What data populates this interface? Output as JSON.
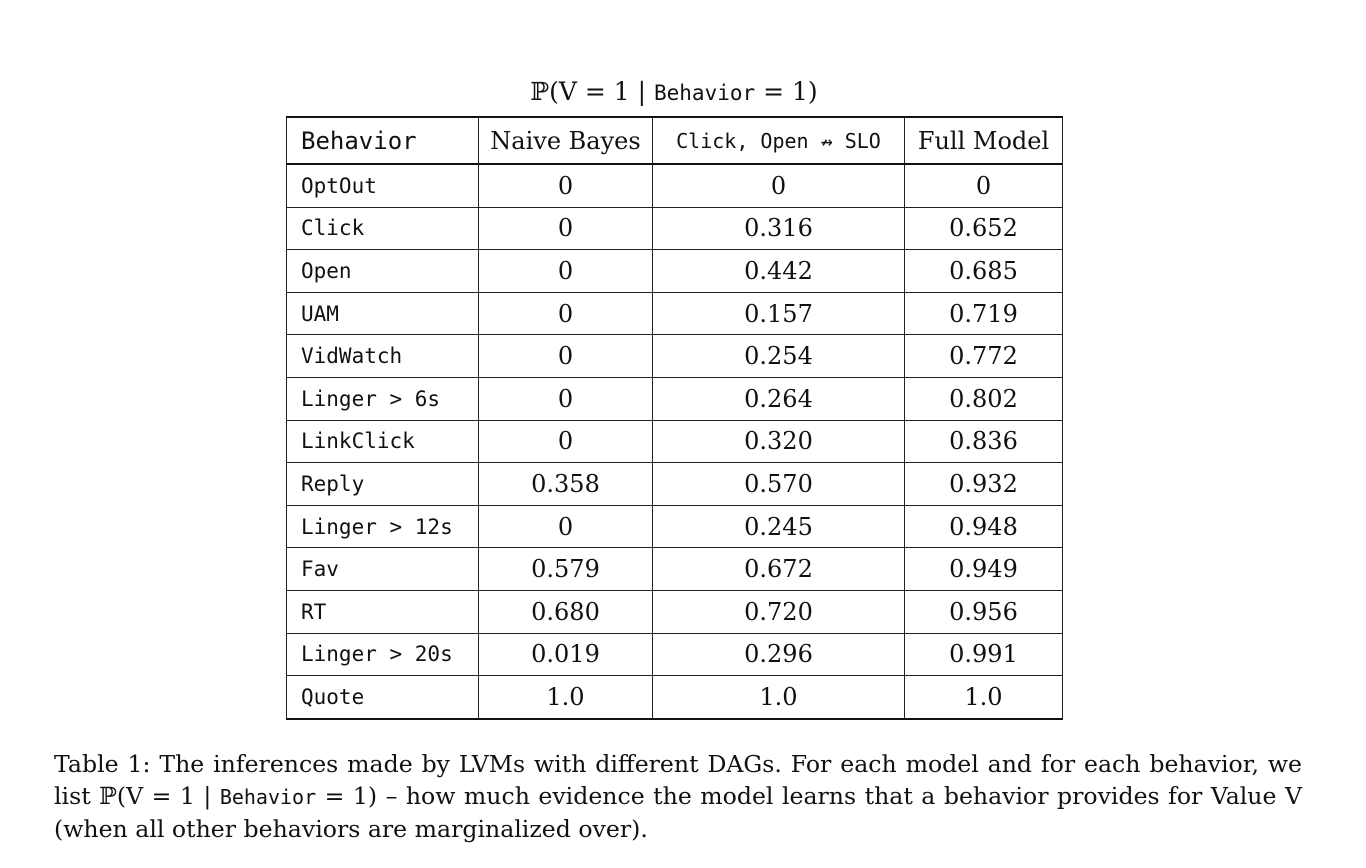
{
  "table_title": {
    "prefix": "ℙ(V = 1 | ",
    "code": "Behavior",
    "suffix": " = 1)"
  },
  "table": {
    "headers": [
      "Behavior",
      "Naive Bayes",
      "Click, Open ↛ SLO",
      "Full Model"
    ],
    "rows": [
      {
        "behavior": "OptOut",
        "naive_bayes": "0",
        "click_open_slo": "0",
        "full_model": "0"
      },
      {
        "behavior": "Click",
        "naive_bayes": "0",
        "click_open_slo": "0.316",
        "full_model": "0.652"
      },
      {
        "behavior": "Open",
        "naive_bayes": "0",
        "click_open_slo": "0.442",
        "full_model": "0.685"
      },
      {
        "behavior": "UAM",
        "naive_bayes": "0",
        "click_open_slo": "0.157",
        "full_model": "0.719"
      },
      {
        "behavior": "VidWatch",
        "naive_bayes": "0",
        "click_open_slo": "0.254",
        "full_model": "0.772"
      },
      {
        "behavior": "Linger > 6s",
        "naive_bayes": "0",
        "click_open_slo": "0.264",
        "full_model": "0.802"
      },
      {
        "behavior": "LinkClick",
        "naive_bayes": "0",
        "click_open_slo": "0.320",
        "full_model": "0.836"
      },
      {
        "behavior": "Reply",
        "naive_bayes": "0.358",
        "click_open_slo": "0.570",
        "full_model": "0.932"
      },
      {
        "behavior": "Linger > 12s",
        "naive_bayes": "0",
        "click_open_slo": "0.245",
        "full_model": "0.948"
      },
      {
        "behavior": "Fav",
        "naive_bayes": "0.579",
        "click_open_slo": "0.672",
        "full_model": "0.949"
      },
      {
        "behavior": "RT",
        "naive_bayes": "0.680",
        "click_open_slo": "0.720",
        "full_model": "0.956"
      },
      {
        "behavior": "Linger > 20s",
        "naive_bayes": "0.019",
        "click_open_slo": "0.296",
        "full_model": "0.991"
      },
      {
        "behavior": "Quote",
        "naive_bayes": "1.0",
        "click_open_slo": "1.0",
        "full_model": "1.0"
      }
    ]
  },
  "caption": {
    "part1": "Table 1: The inferences made by LVMs with different DAGs. For each model and for each behavior, we list ℙ(V = 1 | ",
    "code": "Behavior",
    "part2": " = 1) – how much evidence the model learns that a behavior provides for Value V (when all other behaviors are marginalized over)."
  }
}
